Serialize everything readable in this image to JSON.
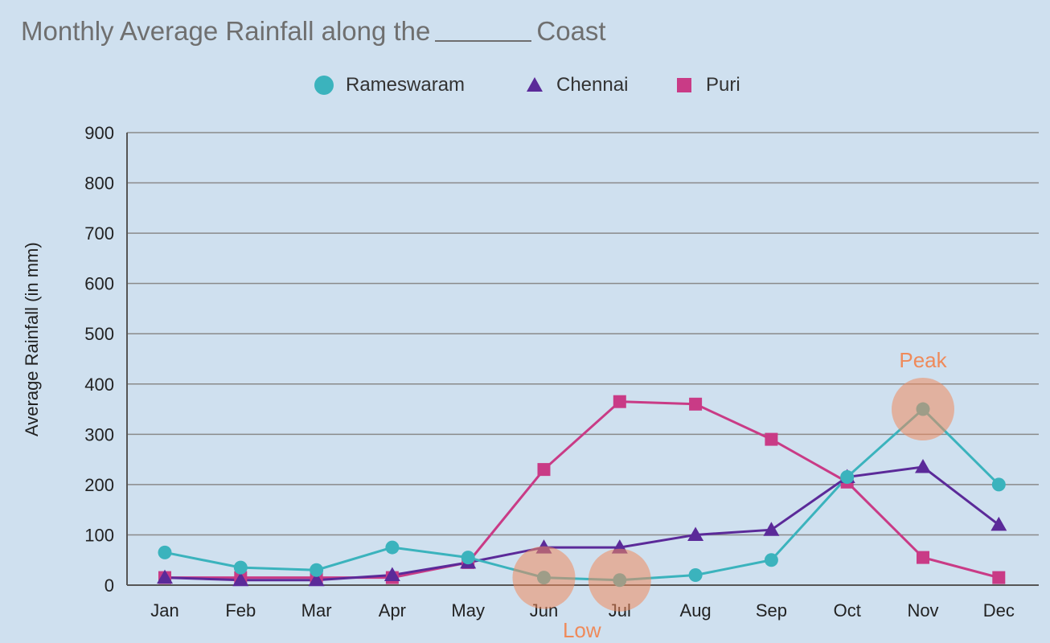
{
  "title_before": "Monthly Average Rainfall along the",
  "title_after": "Coast",
  "colors": {
    "rameswaram": "#3bb3bd",
    "chennai": "#5b2a99",
    "puri": "#c93b86",
    "grid": "#8a8a8a",
    "highlight": "#f08a5d"
  },
  "chart_data": {
    "type": "line",
    "title": "Monthly Average Rainfall along the ______ Coast",
    "xlabel": "",
    "ylabel": "Average Rainfall (in mm)",
    "ylim": [
      0,
      900
    ],
    "yticks": [
      0,
      100,
      200,
      300,
      400,
      500,
      600,
      700,
      800,
      900
    ],
    "grid": true,
    "legend_position": "top-center",
    "categories": [
      "Jan",
      "Feb",
      "Mar",
      "Apr",
      "May",
      "Jun",
      "Jul",
      "Aug",
      "Sep",
      "Oct",
      "Nov",
      "Dec"
    ],
    "series": [
      {
        "name": "Rameswaram",
        "marker": "circle",
        "color": "#3bb3bd",
        "values": [
          65,
          35,
          30,
          75,
          55,
          15,
          10,
          20,
          50,
          215,
          350,
          200
        ]
      },
      {
        "name": "Chennai",
        "marker": "triangle",
        "color": "#5b2a99",
        "values": [
          15,
          10,
          10,
          20,
          45,
          75,
          75,
          100,
          110,
          215,
          235,
          120
        ]
      },
      {
        "name": "Puri",
        "marker": "square",
        "color": "#c93b86",
        "values": [
          15,
          15,
          15,
          15,
          45,
          230,
          365,
          360,
          290,
          205,
          55,
          15
        ]
      }
    ],
    "annotations": [
      {
        "label": "Peak",
        "series": "Rameswaram",
        "category": "Nov",
        "value": 350,
        "label_position": "above"
      },
      {
        "label": "",
        "series": "Rameswaram",
        "category": "Jun",
        "value": 15
      },
      {
        "label": "Low",
        "series": "Rameswaram",
        "category": "Jul",
        "value": 10,
        "label_position": "below-left"
      }
    ]
  }
}
